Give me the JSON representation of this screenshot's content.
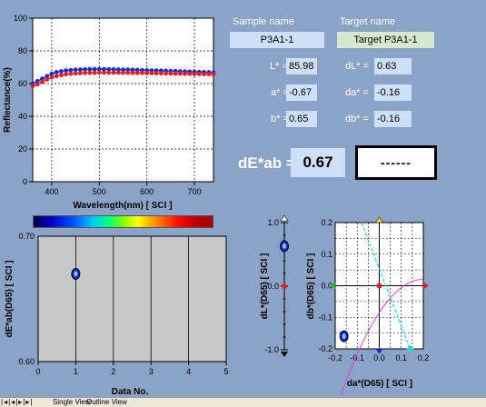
{
  "reflectance_chart": {
    "ylabel": "Reflectance(%)",
    "xlabel": "Wavelength(nm) [ SCI ]",
    "y_ticks": [
      "0",
      "20",
      "40",
      "60",
      "80",
      "100"
    ],
    "x_ticks": [
      "400",
      "500",
      "600",
      "700"
    ],
    "x_range": [
      360,
      740
    ],
    "y_range": [
      0,
      100
    ],
    "series_blue": {
      "color": "#1a2bd6",
      "x": [
        360,
        370,
        380,
        390,
        400,
        410,
        420,
        430,
        440,
        450,
        460,
        470,
        480,
        490,
        500,
        510,
        520,
        530,
        540,
        550,
        560,
        570,
        580,
        590,
        600,
        610,
        620,
        630,
        640,
        650,
        660,
        670,
        680,
        690,
        700,
        710,
        720,
        730,
        740
      ],
      "y": [
        60,
        61.5,
        63,
        64.5,
        66,
        67,
        67.5,
        68,
        68.2,
        68.5,
        68.6,
        68.7,
        68.8,
        68.8,
        68.8,
        68.8,
        68.7,
        68.7,
        68.6,
        68.5,
        68.5,
        68.4,
        68.3,
        68.2,
        68.1,
        68,
        68,
        67.9,
        67.8,
        67.7,
        67.6,
        67.5,
        67.4,
        67.3,
        67.2,
        67.1,
        67,
        66.9,
        66.8
      ]
    },
    "series_red": {
      "color": "#e41e1e",
      "x": [
        360,
        370,
        380,
        390,
        400,
        410,
        420,
        430,
        440,
        450,
        460,
        470,
        480,
        490,
        500,
        510,
        520,
        530,
        540,
        550,
        560,
        570,
        580,
        590,
        600,
        610,
        620,
        630,
        640,
        650,
        660,
        670,
        680,
        690,
        700,
        710,
        720,
        730,
        740
      ],
      "y": [
        58.5,
        59.5,
        61,
        62.5,
        63.8,
        64.6,
        65.2,
        65.7,
        66,
        66.2,
        66.4,
        66.5,
        66.6,
        66.6,
        66.7,
        66.7,
        66.7,
        66.7,
        66.7,
        66.6,
        66.6,
        66.6,
        66.5,
        66.5,
        66.4,
        66.4,
        66.3,
        66.3,
        66.2,
        66.2,
        66.1,
        66.1,
        66,
        66,
        65.9,
        65.9,
        65.8,
        65.8,
        65.7
      ]
    }
  },
  "sample": {
    "header": "Sample name",
    "name": "P3A1-1"
  },
  "target": {
    "header": "Target name",
    "name": "Target P3A1-1"
  },
  "values": {
    "L_label": "L* =",
    "L": "85.98",
    "a_label": "a* =",
    "a": "-0.67",
    "b_label": "b* =",
    "b": "0.65",
    "dL_label": "dL* =",
    "dL": "0.63",
    "da_label": "da* =",
    "da": "-0.16",
    "db_label": "db* =",
    "db": "-0.16"
  },
  "dE": {
    "label": "dE*ab =",
    "value": "0.67",
    "judgement": "------"
  },
  "dE_chart": {
    "ylabel": "dE*ab(D65) [ SCI ]",
    "xlabel": "Data No.",
    "y_ticks": [
      "0.70",
      "0.60"
    ],
    "x_ticks": [
      "0",
      "1",
      "2",
      "3",
      "4",
      "5"
    ],
    "x_range": [
      0,
      5
    ],
    "y_range": [
      0.6,
      0.7
    ],
    "points": [
      {
        "x": 1,
        "y": 0.67
      }
    ]
  },
  "dL_scale": {
    "ylabel": "dL*(D65) [ SCI ]",
    "ticks": [
      "1.0",
      "0.0",
      "-1.0"
    ],
    "range": [
      -1,
      1
    ],
    "value": 0.63
  },
  "dadb_chart": {
    "ylabel": "db*(D65) [ SCI ]",
    "xlabel": "da*(D65) [ SCI ]",
    "x_ticks": [
      "-0.2",
      "-0.1",
      "0.0",
      "0.1",
      "0.2"
    ],
    "y_ticks": [
      "0.2",
      "0.1",
      "0.0",
      "-0.1",
      "-0.2"
    ],
    "range": [
      -0.2,
      0.2
    ],
    "point": {
      "x": -0.16,
      "y": -0.16
    }
  },
  "statusbar": {
    "tab1": "Single View",
    "tab2": "Outline View"
  }
}
